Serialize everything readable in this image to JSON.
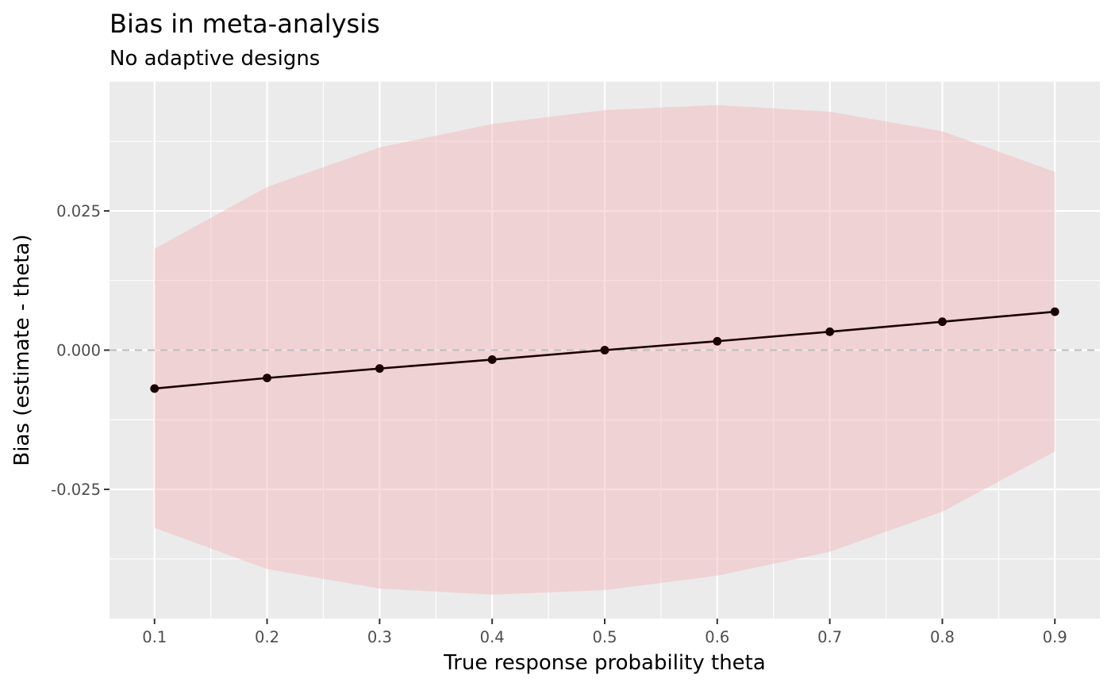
{
  "chart_data": {
    "type": "line",
    "title": "Bias in meta-analysis",
    "subtitle": "No adaptive designs",
    "xlabel": "True response probability theta",
    "ylabel": "Bias (estimate - theta)",
    "x": [
      0.1,
      0.2,
      0.3,
      0.4,
      0.5,
      0.6,
      0.7,
      0.8,
      0.9
    ],
    "x_ticks": [
      "0.1",
      "0.2",
      "0.3",
      "0.4",
      "0.5",
      "0.6",
      "0.7",
      "0.8",
      "0.9"
    ],
    "y_ticks": [
      {
        "value": 0.025,
        "label": "0.025"
      },
      {
        "value": 0.0,
        "label": "0.000"
      },
      {
        "value": -0.025,
        "label": "-0.025"
      }
    ],
    "series": [
      {
        "values": [
          -0.0069,
          -0.005,
          -0.0033,
          -0.0017,
          0.0,
          0.0016,
          0.0033,
          0.0051,
          0.0069
        ],
        "color": "#1a0000"
      }
    ],
    "band": {
      "lower": [
        -0.0319,
        -0.0393,
        -0.0428,
        -0.0439,
        -0.0431,
        -0.0405,
        -0.0362,
        -0.029,
        -0.0182
      ],
      "upper": [
        0.0182,
        0.0293,
        0.0364,
        0.0406,
        0.0431,
        0.044,
        0.0428,
        0.0393,
        0.032
      ],
      "color": "#f4b3b8"
    },
    "reference_line": {
      "y": 0.0,
      "style": "dashed",
      "color": "#bdbdbd"
    },
    "xlim": [
      0.06,
      0.94
    ],
    "ylim": [
      -0.0482,
      0.0482
    ],
    "grid": true,
    "panel_background": "#ebebeb"
  }
}
